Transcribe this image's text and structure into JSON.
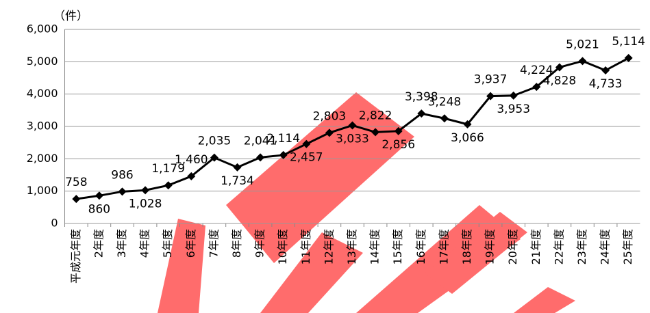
{
  "chart_data": {
    "type": "line",
    "y_label": "（件）",
    "categories": [
      "平成元年度",
      "2年度",
      "3年度",
      "4年度",
      "5年度",
      "6年度",
      "7年度",
      "8年度",
      "9年度",
      "10年度",
      "11年度",
      "12年度",
      "13年度",
      "14年度",
      "15年度",
      "16年度",
      "17年度",
      "18年度",
      "19年度",
      "20年度",
      "21年度",
      "22年度",
      "23年度",
      "24年度",
      "25年度"
    ],
    "series": [
      {
        "color": "#000000",
        "values": [
          758,
          860,
          986,
          1028,
          1179,
          1460,
          2035,
          1734,
          2041,
          2114,
          2457,
          2803,
          3033,
          2822,
          2856,
          3398,
          3248,
          3066,
          3937,
          3953,
          4224,
          4828,
          5021,
          4733,
          5114
        ],
        "value_labels": [
          "758",
          "860",
          "986",
          "1,028",
          "1,179",
          "1,460",
          "2,035",
          "1,734",
          "2,041",
          "2,114",
          "2,457",
          "2,803",
          "3,033",
          "2,822",
          "2,856",
          "3,398",
          "3,248",
          "3,066",
          "3,937",
          "3,953",
          "4,224",
          "4,828",
          "5,021",
          "4,733",
          "5,114"
        ]
      }
    ],
    "ylim": [
      0,
      6000
    ],
    "yticks": [
      0,
      {
        "value": 1000,
        "label": "1,000"
      },
      {
        "value": 2000,
        "label": "2,000"
      },
      {
        "value": 3000,
        "label": "3,000"
      },
      {
        "value": 4000,
        "label": "4,000"
      },
      {
        "value": 5000,
        "label": "5,000"
      },
      {
        "value": 6000,
        "label": "6,000"
      }
    ],
    "grid": true
  }
}
